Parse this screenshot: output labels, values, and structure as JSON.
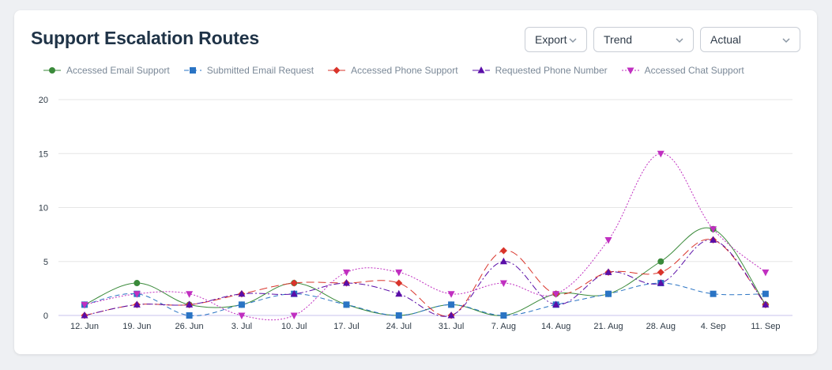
{
  "title": "Support Escalation Routes",
  "controls": {
    "export_label": "Export",
    "trend_label": "Trend",
    "actual_label": "Actual"
  },
  "chart_data": {
    "type": "line",
    "title": "Support Escalation Routes",
    "xlabel": "",
    "ylabel": "",
    "ylim": [
      0,
      20
    ],
    "yticks": [
      "0",
      "5",
      "10",
      "15",
      "20"
    ],
    "categories": [
      "12. Jun",
      "19. Jun",
      "26. Jun",
      "3. Jul",
      "10. Jul",
      "17. Jul",
      "24. Jul",
      "31. Jul",
      "7. Aug",
      "14. Aug",
      "21. Aug",
      "28. Aug",
      "4. Sep",
      "11. Sep"
    ],
    "legend_position": "top-left",
    "series": [
      {
        "name": "Accessed Email Support",
        "color": "#3a8a3a",
        "marker": "circle",
        "dash": "solid",
        "values": [
          1,
          3,
          1,
          1,
          3,
          1,
          0,
          1,
          0,
          2,
          2,
          5,
          8,
          1
        ]
      },
      {
        "name": "Submitted Email Request",
        "color": "#2a74c4",
        "marker": "square",
        "dash": "dashed",
        "values": [
          1,
          2,
          0,
          1,
          2,
          1,
          0,
          1,
          0,
          1,
          2,
          3,
          2,
          2
        ]
      },
      {
        "name": "Accessed Phone Support",
        "color": "#d9342b",
        "marker": "diamond",
        "dash": "longdash",
        "values": [
          0,
          1,
          1,
          2,
          3,
          3,
          3,
          0,
          6,
          2,
          4,
          4,
          7,
          1
        ]
      },
      {
        "name": "Requested Phone Number",
        "color": "#5a0ea8",
        "marker": "triangle",
        "dash": "dashdot",
        "values": [
          0,
          1,
          1,
          2,
          2,
          3,
          2,
          0,
          5,
          1,
          4,
          3,
          7,
          1
        ]
      },
      {
        "name": "Accessed Chat Support",
        "color": "#c02fc0",
        "marker": "triangle-down",
        "dash": "dotted",
        "values": [
          1,
          2,
          2,
          0,
          0,
          4,
          4,
          2,
          3,
          2,
          7,
          15,
          8,
          4
        ]
      }
    ]
  }
}
